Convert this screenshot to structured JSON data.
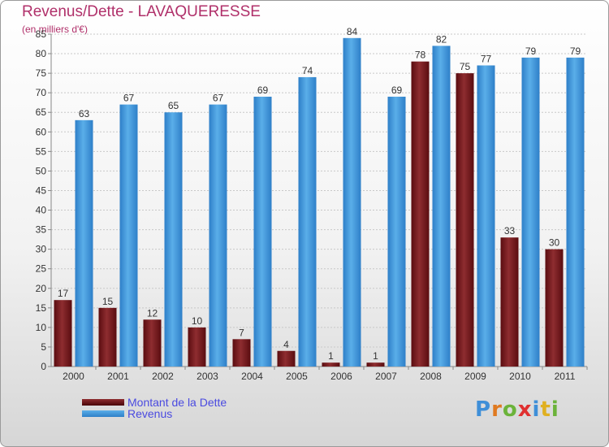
{
  "title": "Revenus/Dette - LAVAQUERESSE",
  "subtitle": "(en milliers d'€)",
  "brand": "Proxiti",
  "colors": {
    "dette": "#7a1f22",
    "revenus": "#3f95dc",
    "title": "#b0306a",
    "legend_text": "#4a4ae0"
  },
  "chart_data": {
    "type": "bar",
    "title": "Revenus/Dette - LAVAQUERESSE",
    "ylabel": "(en milliers d'€)",
    "categories": [
      "2000",
      "2001",
      "2002",
      "2003",
      "2004",
      "2005",
      "2006",
      "2007",
      "2008",
      "2009",
      "2010",
      "2011"
    ],
    "series": [
      {
        "name": "Montant de la Dette",
        "values": [
          17,
          15,
          12,
          10,
          7,
          4,
          1,
          1,
          78,
          75,
          33,
          30
        ]
      },
      {
        "name": "Revenus",
        "values": [
          63,
          67,
          65,
          67,
          69,
          74,
          84,
          69,
          82,
          77,
          79,
          79
        ]
      }
    ],
    "ylim": [
      0,
      85
    ],
    "yticks": [
      0,
      5,
      10,
      15,
      20,
      25,
      30,
      35,
      40,
      45,
      50,
      55,
      60,
      65,
      70,
      75,
      80,
      85
    ],
    "grid": true,
    "legend_position": "bottom-left"
  }
}
